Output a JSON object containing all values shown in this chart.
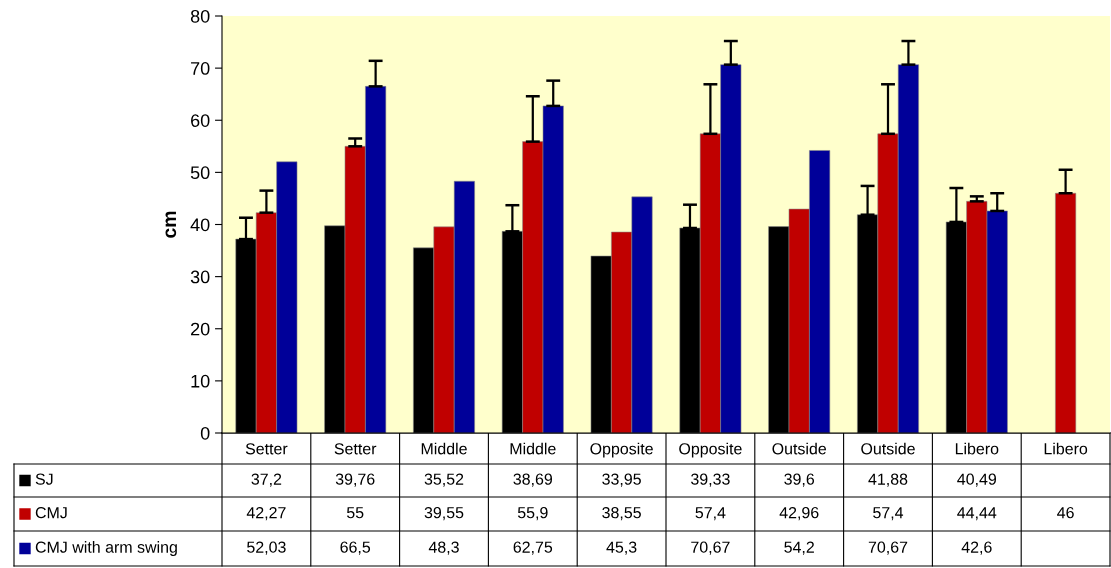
{
  "chart_data": {
    "type": "bar",
    "ylabel": "cm",
    "categories": [
      "Setter",
      "Setter",
      "Middle",
      "Middle",
      "Opposite",
      "Opposite",
      "Outside",
      "Outside",
      "Libero",
      "Libero"
    ],
    "ylim": [
      0,
      80
    ],
    "yticks": [
      0,
      10,
      20,
      30,
      40,
      50,
      60,
      70,
      80
    ],
    "grid": false,
    "legend": "bottom left",
    "series": [
      {
        "name": "SJ",
        "color": "#000000",
        "values": [
          37.2,
          39.76,
          35.52,
          38.69,
          33.95,
          39.33,
          39.6,
          41.88,
          40.49,
          null
        ],
        "value_labels": [
          "37,2",
          "39,76",
          "35,52",
          "38,69",
          "33,95",
          "39,33",
          "39,6",
          "41,88",
          "40,49",
          null
        ],
        "errors": [
          [
            37.2,
            41.3
          ],
          null,
          null,
          [
            38.69,
            43.7
          ],
          null,
          [
            39.33,
            43.8
          ],
          null,
          [
            41.88,
            47.4
          ],
          [
            40.49,
            47
          ],
          null
        ]
      },
      {
        "name": "CMJ",
        "color": "#c00000",
        "values": [
          42.27,
          55,
          39.55,
          55.9,
          38.55,
          57.4,
          42.96,
          57.4,
          44.44,
          46
        ],
        "value_labels": [
          "42,27",
          "55",
          "39,55",
          "55,9",
          "38,55",
          "57,4",
          "42,96",
          "57,4",
          "44,44",
          "46"
        ],
        "errors": [
          [
            42.27,
            46.5
          ],
          [
            55,
            56.5
          ],
          null,
          [
            55.9,
            64.6
          ],
          null,
          [
            57.4,
            66.9
          ],
          null,
          [
            57.4,
            66.9
          ],
          [
            44.44,
            45.4
          ],
          [
            46,
            50.5
          ]
        ]
      },
      {
        "name": "CMJ with arm swing",
        "color": "#000099",
        "values": [
          52.03,
          66.5,
          48.3,
          62.75,
          45.3,
          70.67,
          54.2,
          70.67,
          42.6,
          null
        ],
        "value_labels": [
          "52,03",
          "66,5",
          "48,3",
          "62,75",
          "45,3",
          "70,67",
          "54,2",
          "70,67",
          "42,6",
          null
        ],
        "errors": [
          null,
          [
            66.5,
            71.4
          ],
          null,
          [
            62.75,
            67.6
          ],
          null,
          [
            70.67,
            75.2
          ],
          null,
          [
            70.67,
            75.2
          ],
          [
            42.6,
            46
          ],
          null
        ]
      }
    ]
  }
}
